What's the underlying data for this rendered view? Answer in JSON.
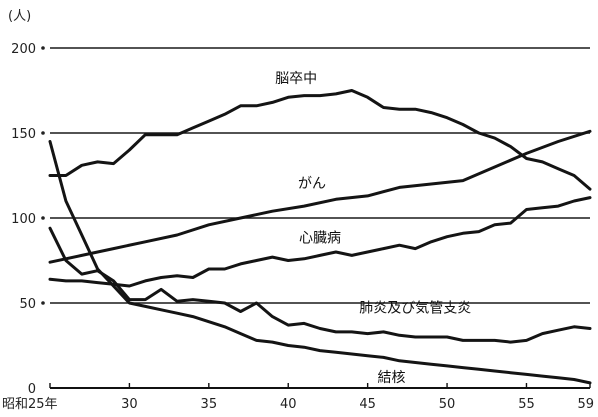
{
  "chart_data": {
    "type": "line",
    "title": "",
    "ylabel": "(人)",
    "xlabel": "",
    "ylim": [
      0,
      200
    ],
    "xlim": [
      25,
      59
    ],
    "grid": true,
    "x_ticks": [
      {
        "value": 25,
        "label": "昭和25年"
      },
      {
        "value": 30,
        "label": "30"
      },
      {
        "value": 35,
        "label": "35"
      },
      {
        "value": 40,
        "label": "40"
      },
      {
        "value": 45,
        "label": "45"
      },
      {
        "value": 50,
        "label": "50"
      },
      {
        "value": 55,
        "label": "55"
      },
      {
        "value": 59,
        "label": "59"
      }
    ],
    "y_ticks": [
      {
        "value": 0,
        "label": "0"
      },
      {
        "value": 50,
        "label": "50"
      },
      {
        "value": 100,
        "label": "100"
      },
      {
        "value": 150,
        "label": "150"
      },
      {
        "value": 200,
        "label": "200"
      }
    ],
    "series": [
      {
        "name": "脳卒中",
        "label_at": [
          40.5,
          176
        ],
        "x": [
          25,
          26,
          27,
          28,
          29,
          30,
          31,
          32,
          33,
          34,
          35,
          36,
          37,
          38,
          39,
          40,
          41,
          42,
          43,
          44,
          45,
          46,
          47,
          48,
          49,
          50,
          51,
          52,
          53,
          54,
          55,
          56,
          57,
          58,
          59
        ],
        "y": [
          125,
          125,
          131,
          133,
          132,
          140,
          149,
          149,
          149,
          153,
          157,
          161,
          166,
          166,
          168,
          171,
          172,
          172,
          173,
          175,
          171,
          165,
          164,
          164,
          162,
          159,
          155,
          150,
          147,
          142,
          135,
          133,
          129,
          125,
          117
        ]
      },
      {
        "name": "がん",
        "label_at": [
          41.5,
          114
        ],
        "x": [
          25,
          27,
          29,
          31,
          33,
          35,
          37,
          39,
          41,
          43,
          45,
          47,
          49,
          51,
          53,
          55,
          57,
          59
        ],
        "y": [
          74,
          78,
          82,
          86,
          90,
          96,
          100,
          104,
          107,
          111,
          113,
          118,
          120,
          122,
          130,
          138,
          145,
          151
        ]
      },
      {
        "name": "心臓病",
        "label_at": [
          42,
          82
        ],
        "x": [
          25,
          26,
          27,
          28,
          29,
          30,
          31,
          32,
          33,
          34,
          35,
          36,
          37,
          38,
          39,
          40,
          41,
          42,
          43,
          44,
          45,
          46,
          47,
          48,
          49,
          50,
          51,
          52,
          53,
          54,
          55,
          56,
          57,
          58,
          59
        ],
        "y": [
          64,
          63,
          63,
          62,
          61,
          60,
          63,
          65,
          66,
          65,
          70,
          70,
          73,
          75,
          77,
          75,
          76,
          78,
          80,
          78,
          80,
          82,
          84,
          82,
          86,
          89,
          91,
          92,
          96,
          97,
          105,
          106,
          107,
          110,
          112
        ]
      },
      {
        "name": "肺炎及び気管支炎",
        "label_at": [
          48,
          41
        ],
        "x": [
          25,
          26,
          27,
          28,
          29,
          30,
          31,
          32,
          33,
          34,
          35,
          36,
          37,
          38,
          39,
          40,
          41,
          42,
          43,
          44,
          45,
          46,
          47,
          48,
          49,
          50,
          51,
          52,
          53,
          54,
          55,
          56,
          57,
          58,
          59
        ],
        "y": [
          94,
          75,
          67,
          69,
          63,
          52,
          52,
          58,
          51,
          52,
          51,
          50,
          45,
          50,
          42,
          37,
          38,
          35,
          33,
          33,
          32,
          33,
          31,
          30,
          30,
          30,
          28,
          28,
          28,
          27,
          28,
          32,
          34,
          36,
          35
        ]
      },
      {
        "name": "結核",
        "label_at": [
          46.5,
          0
        ],
        "x": [
          25,
          26,
          27,
          28,
          29,
          30,
          31,
          32,
          33,
          34,
          35,
          36,
          37,
          38,
          39,
          40,
          41,
          42,
          43,
          44,
          45,
          46,
          47,
          48,
          49,
          50,
          51,
          52,
          53,
          54,
          55,
          56,
          57,
          58,
          59
        ],
        "y": [
          145,
          110,
          90,
          70,
          60,
          50,
          48,
          46,
          44,
          42,
          39,
          36,
          32,
          28,
          27,
          25,
          24,
          22,
          21,
          20,
          19,
          18,
          16,
          15,
          14,
          13,
          12,
          11,
          10,
          9,
          8,
          7,
          6,
          5,
          3
        ]
      }
    ]
  }
}
